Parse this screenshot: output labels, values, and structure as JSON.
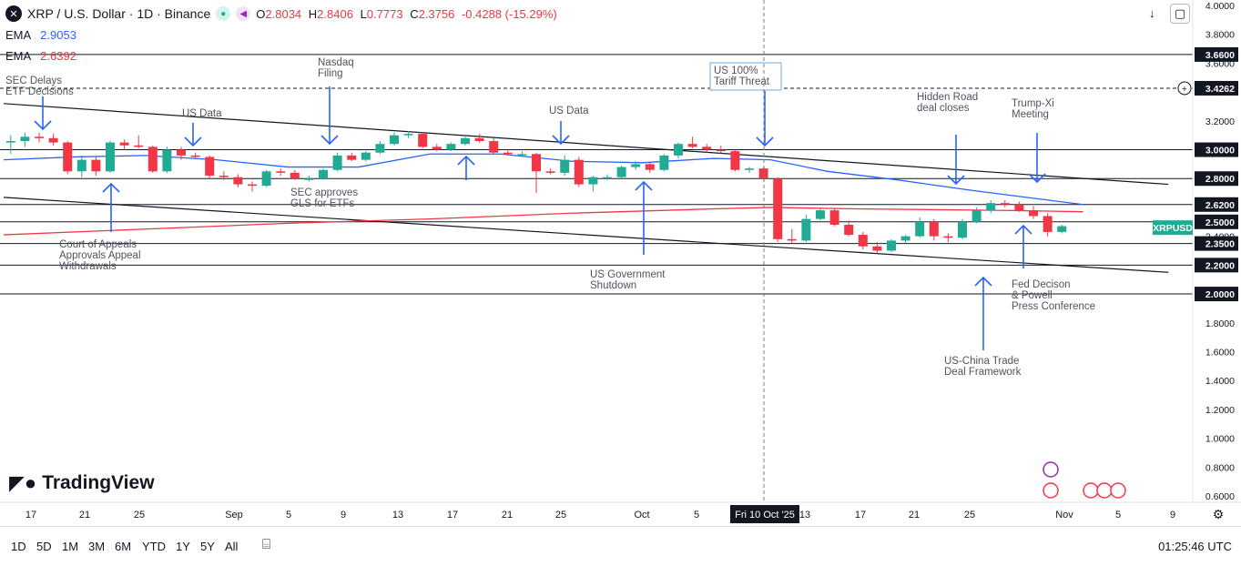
{
  "header": {
    "symbol_icon": "x-logo-icon",
    "title": "XRP / U.S. Dollar · 1D · Binance",
    "open_label": "O",
    "open": "2.8034",
    "high_label": "H",
    "high": "2.8406",
    "low_label": "L",
    "low": "0.7773",
    "close_label": "C",
    "close": "2.3756",
    "change": "-0.4288 (-15.29%)"
  },
  "ema": [
    {
      "label": "EMA",
      "value": "2.9053",
      "color": "#2962ff"
    },
    {
      "label": "EMA",
      "value": "2.6392",
      "color": "#f23645"
    }
  ],
  "price_axis": {
    "ticks": [
      "4.0000",
      "3.8000",
      "3.6000",
      "3.4000",
      "3.2000",
      "3.0000",
      "2.8000",
      "2.6000",
      "2.4000",
      "2.2000",
      "2.0000",
      "1.8000",
      "1.6000",
      "1.4000",
      "1.2000",
      "1.0000",
      "0.8000",
      "0.6000"
    ],
    "highlighted_levels": [
      "3.6600",
      "3.4262",
      "3.0000",
      "2.8000",
      "2.6200",
      "2.5000",
      "2.3500",
      "2.2000",
      "2.0000"
    ],
    "symbol_tag": "XRPUSD",
    "symbol_tag_color": "#22ab94"
  },
  "time_axis": {
    "ticks": [
      "17",
      "21",
      "25",
      "Sep",
      "5",
      "9",
      "13",
      "17",
      "21",
      "25",
      "Oct",
      "5",
      "13",
      "17",
      "21",
      "25",
      "Nov",
      "5",
      "9"
    ],
    "crosshair_label": "Fri 10 Oct '25"
  },
  "chart_data": {
    "type": "candlestick",
    "title": "XRP / U.S. Dollar · 1D · Binance",
    "ylim": [
      0.6,
      4.0
    ],
    "candles": [
      {
        "o": 3.05,
        "h": 3.1,
        "l": 2.97,
        "c": 3.06
      },
      {
        "o": 3.06,
        "h": 3.12,
        "l": 3.02,
        "c": 3.09
      },
      {
        "o": 3.09,
        "h": 3.12,
        "l": 3.05,
        "c": 3.08
      },
      {
        "o": 3.08,
        "h": 3.11,
        "l": 3.03,
        "c": 3.05
      },
      {
        "o": 3.05,
        "h": 3.06,
        "l": 2.83,
        "c": 2.85
      },
      {
        "o": 2.85,
        "h": 2.96,
        "l": 2.81,
        "c": 2.93
      },
      {
        "o": 2.93,
        "h": 2.95,
        "l": 2.82,
        "c": 2.85
      },
      {
        "o": 2.85,
        "h": 3.06,
        "l": 2.84,
        "c": 3.05
      },
      {
        "o": 3.05,
        "h": 3.07,
        "l": 3.0,
        "c": 3.03
      },
      {
        "o": 3.03,
        "h": 3.1,
        "l": 3.01,
        "c": 3.02
      },
      {
        "o": 3.02,
        "h": 3.03,
        "l": 2.84,
        "c": 2.85
      },
      {
        "o": 2.85,
        "h": 3.02,
        "l": 2.84,
        "c": 3.0
      },
      {
        "o": 3.0,
        "h": 3.02,
        "l": 2.93,
        "c": 2.96
      },
      {
        "o": 2.96,
        "h": 2.98,
        "l": 2.94,
        "c": 2.95
      },
      {
        "o": 2.95,
        "h": 2.96,
        "l": 2.8,
        "c": 2.82
      },
      {
        "o": 2.82,
        "h": 2.85,
        "l": 2.79,
        "c": 2.81
      },
      {
        "o": 2.81,
        "h": 2.83,
        "l": 2.74,
        "c": 2.76
      },
      {
        "o": 2.76,
        "h": 2.78,
        "l": 2.71,
        "c": 2.75
      },
      {
        "o": 2.75,
        "h": 2.86,
        "l": 2.74,
        "c": 2.85
      },
      {
        "o": 2.85,
        "h": 2.87,
        "l": 2.82,
        "c": 2.84
      },
      {
        "o": 2.84,
        "h": 2.86,
        "l": 2.79,
        "c": 2.8
      },
      {
        "o": 2.8,
        "h": 2.82,
        "l": 2.78,
        "c": 2.8
      },
      {
        "o": 2.8,
        "h": 2.87,
        "l": 2.79,
        "c": 2.86
      },
      {
        "o": 2.86,
        "h": 2.98,
        "l": 2.85,
        "c": 2.96
      },
      {
        "o": 2.96,
        "h": 2.98,
        "l": 2.92,
        "c": 2.93
      },
      {
        "o": 2.93,
        "h": 2.99,
        "l": 2.92,
        "c": 2.98
      },
      {
        "o": 2.98,
        "h": 3.06,
        "l": 2.97,
        "c": 3.04
      },
      {
        "o": 3.04,
        "h": 3.12,
        "l": 3.03,
        "c": 3.1
      },
      {
        "o": 3.1,
        "h": 3.13,
        "l": 3.08,
        "c": 3.11
      },
      {
        "o": 3.11,
        "h": 3.12,
        "l": 3.01,
        "c": 3.02
      },
      {
        "o": 3.02,
        "h": 3.04,
        "l": 2.99,
        "c": 3.0
      },
      {
        "o": 3.0,
        "h": 3.05,
        "l": 2.99,
        "c": 3.04
      },
      {
        "o": 3.04,
        "h": 3.09,
        "l": 3.03,
        "c": 3.08
      },
      {
        "o": 3.08,
        "h": 3.11,
        "l": 3.05,
        "c": 3.06
      },
      {
        "o": 3.06,
        "h": 3.08,
        "l": 2.97,
        "c": 2.98
      },
      {
        "o": 2.98,
        "h": 3.0,
        "l": 2.96,
        "c": 2.97
      },
      {
        "o": 2.97,
        "h": 2.99,
        "l": 2.95,
        "c": 2.97
      },
      {
        "o": 2.97,
        "h": 2.98,
        "l": 2.7,
        "c": 2.85
      },
      {
        "o": 2.85,
        "h": 2.87,
        "l": 2.83,
        "c": 2.84
      },
      {
        "o": 2.84,
        "h": 2.96,
        "l": 2.82,
        "c": 2.93
      },
      {
        "o": 2.93,
        "h": 2.95,
        "l": 2.74,
        "c": 2.76
      },
      {
        "o": 2.76,
        "h": 2.82,
        "l": 2.71,
        "c": 2.81
      },
      {
        "o": 2.81,
        "h": 2.83,
        "l": 2.79,
        "c": 2.81
      },
      {
        "o": 2.81,
        "h": 2.89,
        "l": 2.8,
        "c": 2.88
      },
      {
        "o": 2.88,
        "h": 2.92,
        "l": 2.86,
        "c": 2.9
      },
      {
        "o": 2.9,
        "h": 2.91,
        "l": 2.84,
        "c": 2.86
      },
      {
        "o": 2.86,
        "h": 2.97,
        "l": 2.85,
        "c": 2.96
      },
      {
        "o": 2.96,
        "h": 3.05,
        "l": 2.94,
        "c": 3.04
      },
      {
        "o": 3.04,
        "h": 3.09,
        "l": 3.01,
        "c": 3.02
      },
      {
        "o": 3.02,
        "h": 3.04,
        "l": 2.98,
        "c": 3.0
      },
      {
        "o": 3.0,
        "h": 3.03,
        "l": 2.97,
        "c": 2.99
      },
      {
        "o": 2.99,
        "h": 3.0,
        "l": 2.85,
        "c": 2.86
      },
      {
        "o": 2.86,
        "h": 2.88,
        "l": 2.84,
        "c": 2.87
      },
      {
        "o": 2.87,
        "h": 2.88,
        "l": 2.79,
        "c": 2.8
      },
      {
        "o": 2.8,
        "h": 2.81,
        "l": 2.36,
        "c": 2.38
      },
      {
        "o": 2.38,
        "h": 2.45,
        "l": 2.35,
        "c": 2.37
      },
      {
        "o": 2.37,
        "h": 2.55,
        "l": 2.36,
        "c": 2.52
      },
      {
        "o": 2.52,
        "h": 2.6,
        "l": 2.51,
        "c": 2.58
      },
      {
        "o": 2.58,
        "h": 2.59,
        "l": 2.47,
        "c": 2.48
      },
      {
        "o": 2.48,
        "h": 2.51,
        "l": 2.4,
        "c": 2.41
      },
      {
        "o": 2.41,
        "h": 2.43,
        "l": 2.31,
        "c": 2.33
      },
      {
        "o": 2.33,
        "h": 2.36,
        "l": 2.28,
        "c": 2.3
      },
      {
        "o": 2.3,
        "h": 2.38,
        "l": 2.29,
        "c": 2.37
      },
      {
        "o": 2.37,
        "h": 2.41,
        "l": 2.35,
        "c": 2.4
      },
      {
        "o": 2.4,
        "h": 2.53,
        "l": 2.39,
        "c": 2.5
      },
      {
        "o": 2.5,
        "h": 2.52,
        "l": 2.37,
        "c": 2.4
      },
      {
        "o": 2.4,
        "h": 2.42,
        "l": 2.36,
        "c": 2.39
      },
      {
        "o": 2.39,
        "h": 2.52,
        "l": 2.38,
        "c": 2.5
      },
      {
        "o": 2.5,
        "h": 2.6,
        "l": 2.49,
        "c": 2.58
      },
      {
        "o": 2.58,
        "h": 2.65,
        "l": 2.56,
        "c": 2.63
      },
      {
        "o": 2.63,
        "h": 2.65,
        "l": 2.6,
        "c": 2.62
      },
      {
        "o": 2.62,
        "h": 2.64,
        "l": 2.57,
        "c": 2.58
      },
      {
        "o": 2.58,
        "h": 2.61,
        "l": 2.52,
        "c": 2.54
      },
      {
        "o": 2.54,
        "h": 2.56,
        "l": 2.4,
        "c": 2.43
      },
      {
        "o": 2.43,
        "h": 2.48,
        "l": 2.42,
        "c": 2.47
      }
    ],
    "ema_blue": [
      [
        0,
        2.93
      ],
      [
        5,
        2.95
      ],
      [
        10,
        2.96
      ],
      [
        15,
        2.93
      ],
      [
        20,
        2.88
      ],
      [
        25,
        2.88
      ],
      [
        30,
        2.97
      ],
      [
        35,
        2.97
      ],
      [
        40,
        2.92
      ],
      [
        45,
        2.91
      ],
      [
        50,
        2.94
      ],
      [
        54,
        2.93
      ],
      [
        58,
        2.85
      ],
      [
        63,
        2.79
      ],
      [
        68,
        2.72
      ],
      [
        72,
        2.67
      ],
      [
        76,
        2.62
      ]
    ],
    "ema_red": [
      [
        0,
        2.41
      ],
      [
        10,
        2.45
      ],
      [
        20,
        2.49
      ],
      [
        30,
        2.52
      ],
      [
        40,
        2.56
      ],
      [
        50,
        2.59
      ],
      [
        54,
        2.6
      ],
      [
        60,
        2.59
      ],
      [
        70,
        2.58
      ],
      [
        76,
        2.57
      ]
    ],
    "trendlines": [
      {
        "from": [
          0,
          3.32
        ],
        "to": [
          82,
          2.76
        ]
      },
      {
        "from": [
          0,
          2.67
        ],
        "to": [
          82,
          2.15
        ]
      }
    ],
    "horizontal_levels": [
      3.66,
      3.4262,
      3.0,
      2.8,
      2.62,
      2.5,
      2.35,
      2.2,
      2.0
    ],
    "annotations": [
      {
        "text": "SEC Delays\nETF Decisions",
        "arrow": "down"
      },
      {
        "text": "Court of Appeals\nApprovals Appeal\nWithdrawals",
        "arrow": "up"
      },
      {
        "text": "US Data",
        "arrow": "down"
      },
      {
        "text": "Nasdaq\nFiling",
        "arrow": "down"
      },
      {
        "text": "SEC approves\nGLS for ETFs",
        "arrow": "up"
      },
      {
        "text": "US Data",
        "arrow": "down"
      },
      {
        "text": "US Government\nShutdown",
        "arrow": "up"
      },
      {
        "text": "US 100%\nTariff Threat",
        "arrow": "down"
      },
      {
        "text": "Hidden Road\ndeal closes",
        "arrow": "down"
      },
      {
        "text": "Trump-Xi\nMeeting",
        "arrow": "down"
      },
      {
        "text": "Fed Decison\n& Powell\nPress Conference",
        "arrow": "up"
      },
      {
        "text": "US-China Trade\nDeal Framework",
        "arrow": "up"
      }
    ]
  },
  "branding": {
    "logo_text": "TradingView"
  },
  "bottom_bar": {
    "ranges": [
      "1D",
      "5D",
      "1M",
      "3M",
      "6M",
      "YTD",
      "1Y",
      "5Y",
      "All"
    ],
    "clock": "01:25:46 UTC"
  },
  "colors": {
    "up": "#22ab94",
    "down": "#f23645",
    "ema_blue": "#2962ff",
    "ema_red": "#f23645"
  }
}
